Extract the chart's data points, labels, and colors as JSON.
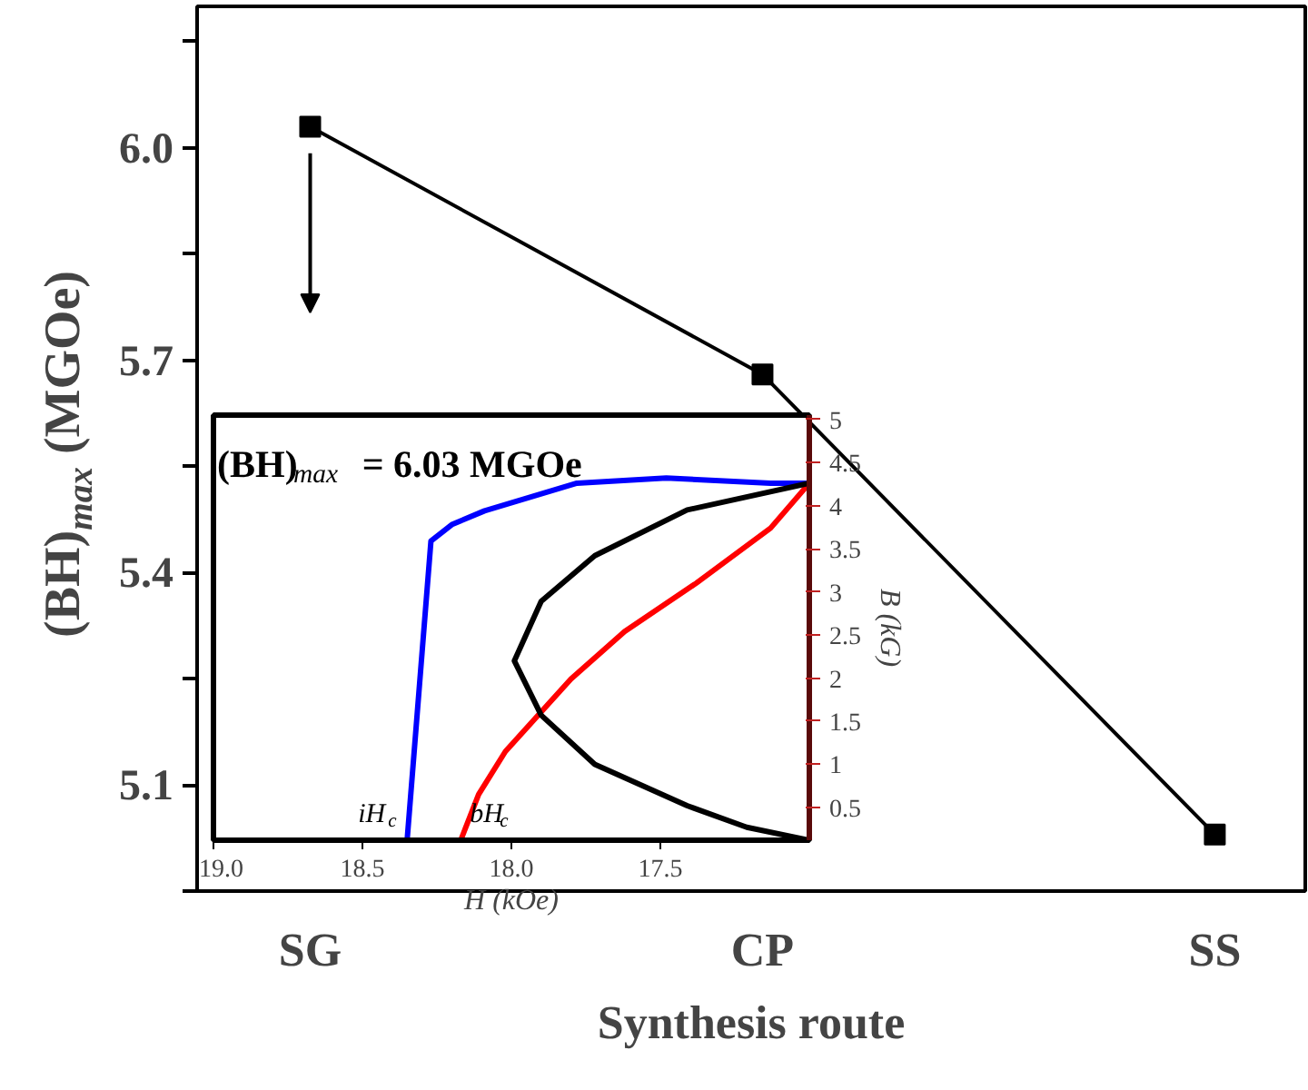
{
  "chart_data": [
    {
      "type": "line",
      "categories": [
        "SG",
        "CP",
        "SS"
      ],
      "values": [
        6.03,
        5.68,
        5.03
      ],
      "color": "#000000",
      "marker": "square",
      "xlabel": "Synthesis route",
      "ylabel": "(BH)$_{max}$ (MGOe)",
      "ylim": [
        4.95,
        6.2
      ],
      "yticks": [
        {
          "value": 4.95,
          "label": null
        },
        5.1,
        {
          "value": 5.25,
          "label": null
        },
        5.4,
        {
          "value": 5.55,
          "label": null
        },
        5.7,
        {
          "value": 5.85,
          "label": null
        },
        {
          "value": 6.0,
          "label": "6.0"
        },
        {
          "value": 6.15,
          "label": null
        }
      ]
    },
    {
      "type": "line",
      "xlabel": "H (kOe)",
      "ylabel": "B (kG)",
      "xlim": [
        19.0,
        17.0
      ],
      "xticks": [
        {
          "value": 19.0,
          "label": "19.0"
        },
        18.5,
        {
          "value": 18.0,
          "label": "18.0"
        },
        17.5
      ],
      "ylim": [
        0.12,
        5.05
      ],
      "yticks": [
        0.5,
        1,
        1.5,
        2,
        2.5,
        3,
        3.5,
        4,
        4.5,
        5
      ],
      "series": [
        {
          "color": "#0000ff",
          "x": [
            18.35,
            18.27,
            18.2,
            18.09,
            17.78,
            17.48,
            17.13,
            17.0
          ],
          "values": [
            0.12,
            3.59,
            3.78,
            3.94,
            4.26,
            4.32,
            4.26,
            4.26
          ]
        },
        {
          "color": "#ff0000",
          "x": [
            18.17,
            18.11,
            18.02,
            17.8,
            17.62,
            17.38,
            17.13,
            17.0
          ],
          "values": [
            0.12,
            0.65,
            1.15,
            1.99,
            2.54,
            3.1,
            3.74,
            4.26
          ]
        },
        {
          "color": "#000000",
          "x": [
            17.0,
            17.41,
            17.72,
            17.9,
            17.99,
            17.9,
            17.72,
            17.41,
            17.21,
            17.0
          ],
          "values": [
            4.26,
            3.95,
            3.42,
            2.89,
            2.2,
            1.57,
            1.0,
            0.52,
            0.27,
            0.12
          ]
        }
      ],
      "annotations": [
        "(BH)$_{max}$ = 6.03 MGOe",
        {
          "text": "iH$_{c}$",
          "x": 18.35,
          "y": 0.12
        },
        {
          "text": "bH$_{c}$",
          "x": 18.17,
          "y": 0.12
        }
      ]
    }
  ]
}
